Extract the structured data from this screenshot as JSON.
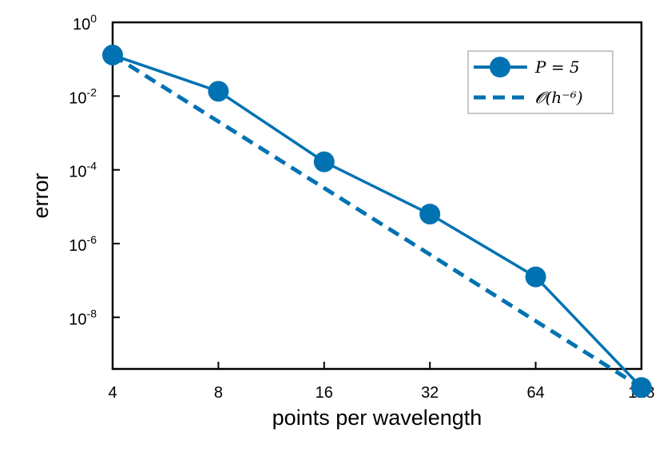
{
  "chart_data": {
    "type": "line",
    "title": "",
    "xlabel": "points per wavelength",
    "ylabel": "error",
    "xscale": "log2",
    "yscale": "log10",
    "xlim": [
      4,
      128
    ],
    "ylim_exponents": [
      -9.4,
      0
    ],
    "x_ticks": [
      4,
      8,
      16,
      32,
      64,
      128
    ],
    "y_tick_exponents": [
      0,
      -2,
      -4,
      -6,
      -8
    ],
    "y_tick_base": "10",
    "legend_position": "top-right",
    "series": [
      {
        "name": "P = 5",
        "style": "solid-marker",
        "color": "#0072b2",
        "x": [
          4,
          8,
          16,
          32,
          64,
          128
        ],
        "y": [
          0.13,
          0.0135,
          0.000165,
          6.3e-06,
          1.25e-07,
          1.25e-10
        ]
      },
      {
        "name": "𝓞(h⁻⁶)",
        "style": "dashed",
        "color": "#0072b2",
        "x": [
          4,
          128
        ],
        "y": [
          0.13,
          1.25e-10
        ]
      }
    ]
  }
}
